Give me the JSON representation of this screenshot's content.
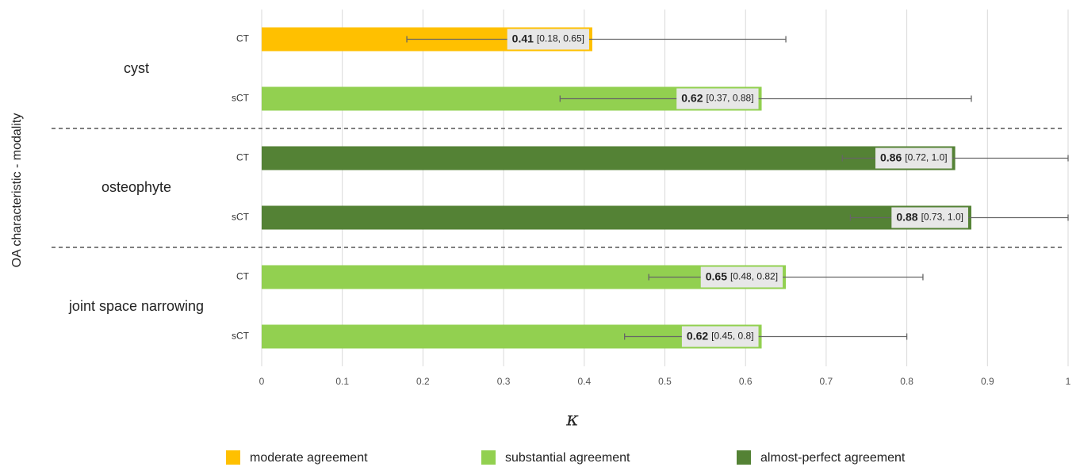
{
  "chart_data": {
    "type": "bar",
    "orientation": "horizontal",
    "x_label": "κ",
    "y_label": "OA characteristic - modality",
    "groups": [
      "cyst",
      "osteophyte",
      "joint space narrowing"
    ],
    "categories": [
      "CT",
      "sCT",
      "CT",
      "sCT",
      "CT",
      "sCT"
    ],
    "series": [
      {
        "name": "moderate agreement",
        "color": "#ffc000",
        "values": [
          0.41,
          null,
          null,
          null,
          null,
          null
        ],
        "ci_low": [
          0.18,
          null,
          null,
          null,
          null,
          null
        ],
        "ci_high": [
          0.65,
          null,
          null,
          null,
          null,
          null
        ],
        "ci_labels": [
          "[0.18, 0.65]",
          null,
          null,
          null,
          null,
          null
        ]
      },
      {
        "name": "substantial agreement",
        "color": "#92d050",
        "values": [
          null,
          0.62,
          null,
          null,
          0.65,
          0.62
        ],
        "ci_low": [
          null,
          0.37,
          null,
          null,
          0.48,
          0.45
        ],
        "ci_high": [
          null,
          0.88,
          null,
          null,
          0.82,
          0.8
        ],
        "ci_labels": [
          null,
          "[0.37, 0.88]",
          null,
          null,
          "[0.48, 0.82]",
          "[0.45, 0.8]"
        ]
      },
      {
        "name": "almost-perfect agreement",
        "color": "#548235",
        "values": [
          null,
          null,
          0.86,
          0.88,
          null,
          null
        ],
        "ci_low": [
          null,
          null,
          0.72,
          0.73,
          null,
          null
        ],
        "ci_high": [
          null,
          null,
          1,
          1,
          null,
          null
        ],
        "ci_labels": [
          null,
          null,
          "[0.72, 1.0]",
          "[0.73, 1.0]",
          null,
          null
        ]
      }
    ],
    "xlim": [
      0,
      1
    ],
    "xticks": [
      0,
      0.1,
      0.2,
      0.3,
      0.4,
      0.5,
      0.6,
      0.7,
      0.8,
      0.9,
      1
    ],
    "grid": true
  }
}
